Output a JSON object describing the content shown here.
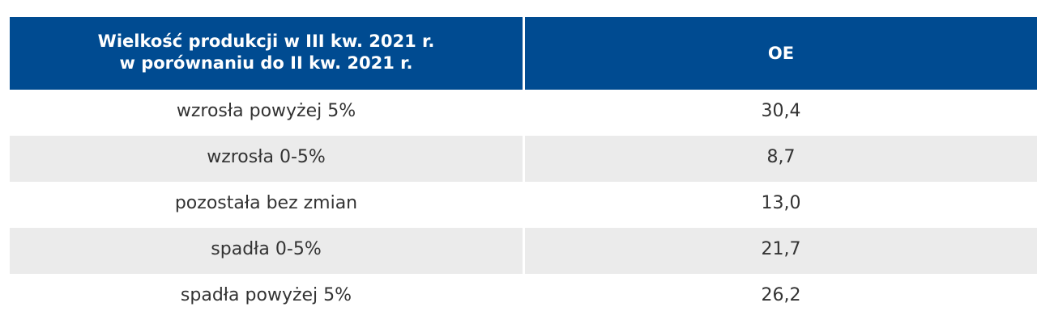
{
  "table": {
    "headers": [
      "Wielkość produkcji w III kw. 2021 r.\nw porównaniu do II kw. 2021 r.",
      "OE"
    ],
    "rows": [
      [
        "wzrosła powyżej 5%",
        "30,4"
      ],
      [
        "wzrosła 0-5%",
        "8,7"
      ],
      [
        "pozostała bez zmian",
        "13,0"
      ],
      [
        "spadła 0-5%",
        "21,7"
      ],
      [
        "spadła powyżej 5%",
        "26,2"
      ]
    ]
  },
  "colors": {
    "header_bg": "#004b91",
    "header_text": "#ffffff",
    "shaded_row": "#ebebeb"
  }
}
